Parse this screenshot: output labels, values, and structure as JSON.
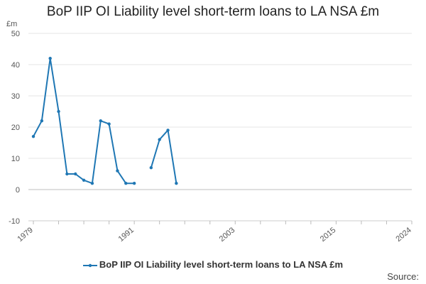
{
  "chart_data": {
    "type": "line",
    "title": "BoP IIP OI Liability level short-term loans to LA NSA £m",
    "y_unit": "£m",
    "xlim": [
      1979,
      2024
    ],
    "ylim": [
      -10,
      50
    ],
    "y_ticks": [
      -10,
      0,
      10,
      20,
      30,
      40,
      50
    ],
    "x_ticks": [
      1979,
      1991,
      2003,
      2015,
      2024
    ],
    "x_minor_ticks": [
      1979,
      1982,
      1985,
      1988,
      1991,
      1994,
      1997,
      2000,
      2003,
      2006,
      2009,
      2012,
      2015,
      2018,
      2021,
      2024
    ],
    "grid": true,
    "legend_position": "bottom",
    "series": [
      {
        "name": "BoP IIP OI Liability level short-term loans to LA NSA £m",
        "color": "#1f77b4",
        "points": [
          {
            "x": 1979,
            "y": 17
          },
          {
            "x": 1980,
            "y": 22
          },
          {
            "x": 1981,
            "y": 42
          },
          {
            "x": 1982,
            "y": 25
          },
          {
            "x": 1983,
            "y": 5
          },
          {
            "x": 1984,
            "y": 5
          },
          {
            "x": 1985,
            "y": 3
          },
          {
            "x": 1986,
            "y": 2
          },
          {
            "x": 1987,
            "y": 22
          },
          {
            "x": 1988,
            "y": 21
          },
          {
            "x": 1989,
            "y": 6
          },
          {
            "x": 1990,
            "y": 2
          },
          {
            "x": 1991,
            "y": 2
          },
          {
            "x": 1992,
            "y": null
          },
          {
            "x": 1993,
            "y": 7
          },
          {
            "x": 1994,
            "y": 16
          },
          {
            "x": 1995,
            "y": 19
          },
          {
            "x": 1996,
            "y": 2
          }
        ]
      }
    ]
  },
  "footer": {
    "source_label": "Source:"
  }
}
